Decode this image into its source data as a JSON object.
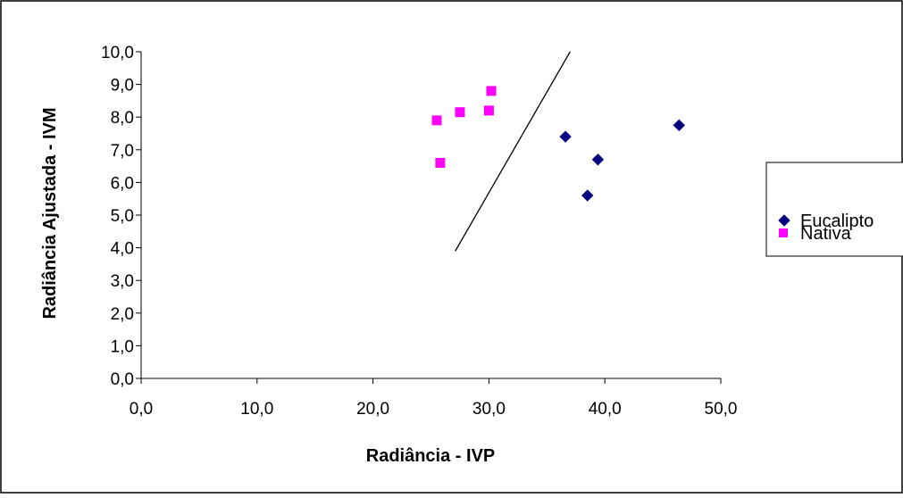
{
  "chart_data": {
    "type": "scatter",
    "title": "",
    "xlabel": "Radiância - IVP",
    "ylabel": "Radiância Ajustada - IVM",
    "xlim": [
      0,
      50
    ],
    "ylim": [
      0,
      10
    ],
    "x_ticks": [
      "0,0",
      "10,0",
      "20,0",
      "30,0",
      "40,0",
      "50,0"
    ],
    "y_ticks": [
      "0,0",
      "1,0",
      "2,0",
      "3,0",
      "4,0",
      "5,0",
      "6,0",
      "7,0",
      "8,0",
      "9,0",
      "10,0"
    ],
    "grid": false,
    "legend_position": "right",
    "series": [
      {
        "name": "Eucalipto",
        "marker": "diamond",
        "color": "#000080",
        "points": [
          {
            "x": 36.6,
            "y": 7.4
          },
          {
            "x": 39.4,
            "y": 6.7
          },
          {
            "x": 38.5,
            "y": 5.6
          },
          {
            "x": 46.4,
            "y": 7.75
          }
        ]
      },
      {
        "name": "Nativa",
        "marker": "square",
        "color": "#FF00FF",
        "points": [
          {
            "x": 25.5,
            "y": 7.9
          },
          {
            "x": 27.5,
            "y": 8.15
          },
          {
            "x": 30.0,
            "y": 8.2
          },
          {
            "x": 30.2,
            "y": 8.8
          },
          {
            "x": 25.8,
            "y": 6.6
          }
        ]
      }
    ],
    "annotation_line": {
      "x1": 27.1,
      "y1": 3.9,
      "x2": 37.0,
      "y2": 10.0,
      "color": "#000000"
    }
  }
}
